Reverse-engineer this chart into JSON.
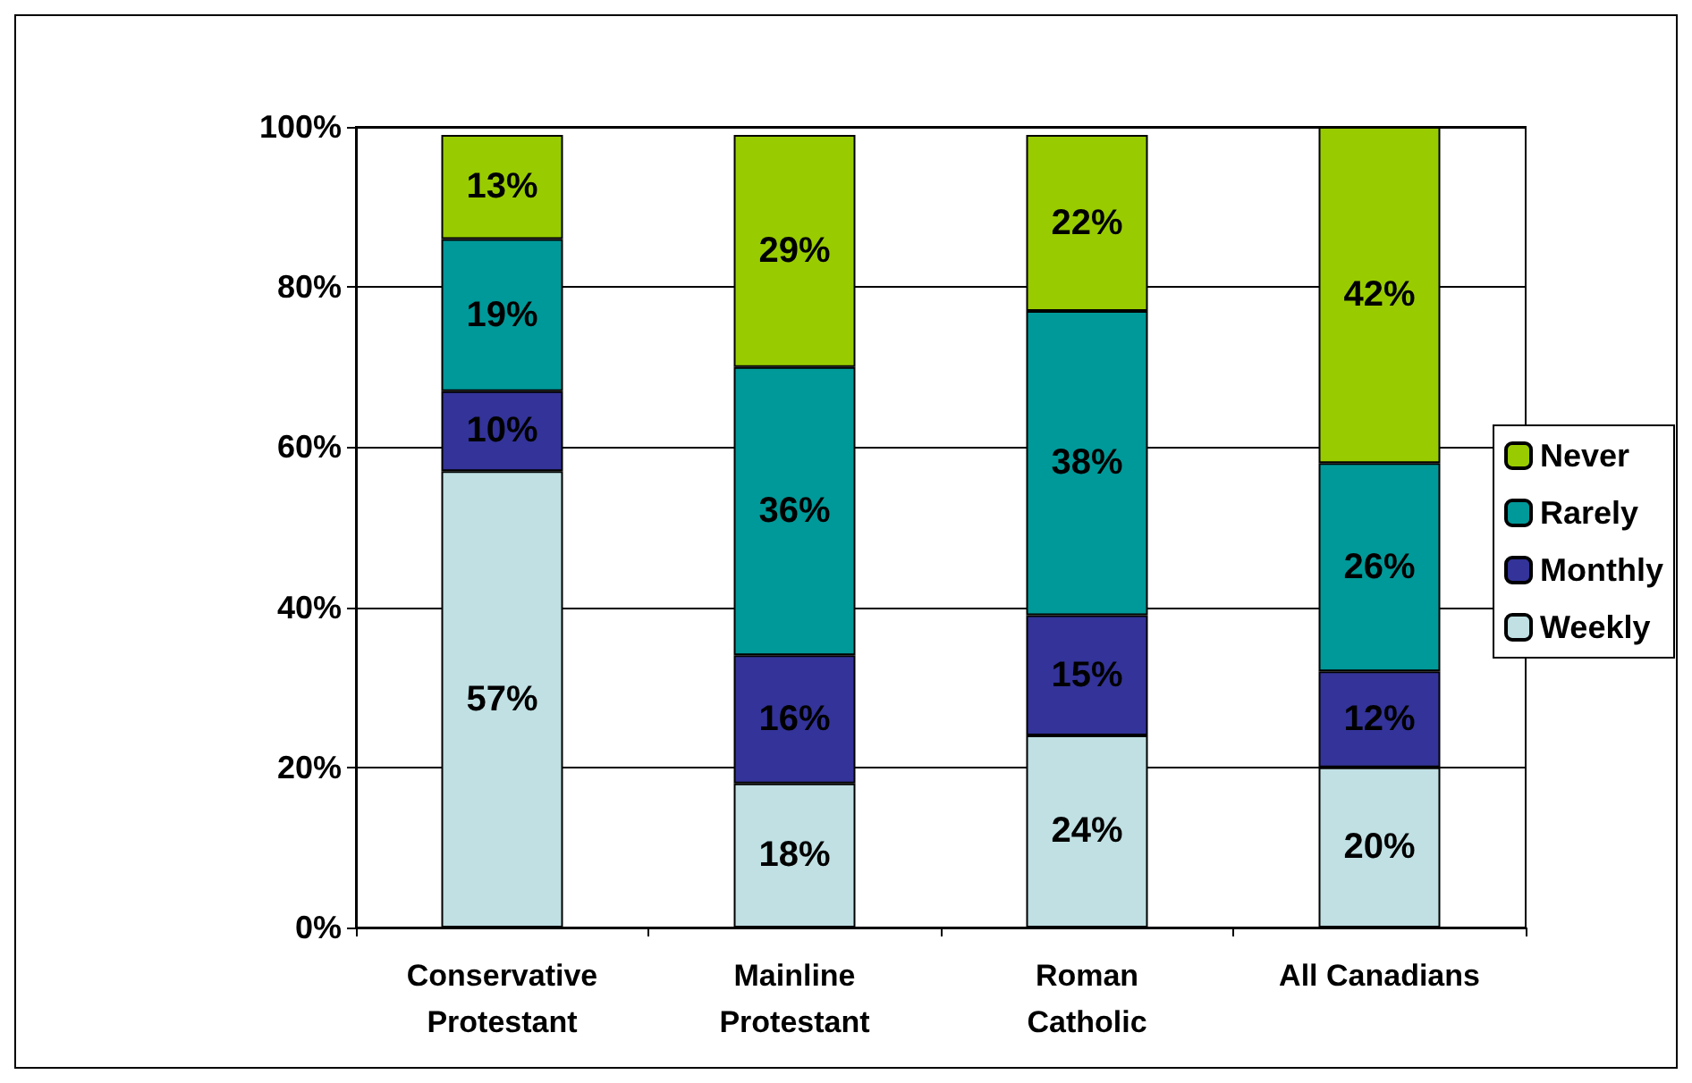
{
  "chart_data": {
    "type": "bar",
    "stacked": true,
    "categories": [
      "Conservative\nProtestant",
      "Mainline\nProtestant",
      "Roman\nCatholic",
      "All Canadians"
    ],
    "series": [
      {
        "name": "Weekly",
        "color": "#c0e0e3",
        "values": [
          57,
          18,
          24,
          20
        ],
        "value_labels": [
          "57%",
          "18%",
          "24%",
          "20%"
        ]
      },
      {
        "name": "Monthly",
        "color": "#333399",
        "values": [
          10,
          16,
          15,
          12
        ],
        "value_labels": [
          "10%",
          "16%",
          "15%",
          "12%"
        ]
      },
      {
        "name": "Rarely",
        "color": "#009999",
        "values": [
          19,
          36,
          38,
          26
        ],
        "value_labels": [
          "19%",
          "36%",
          "38%",
          "26%"
        ]
      },
      {
        "name": "Never",
        "color": "#99cc00",
        "values": [
          13,
          29,
          22,
          42
        ],
        "value_labels": [
          "13%",
          "29%",
          "22%",
          "42%"
        ]
      }
    ],
    "ylim": [
      0,
      100
    ],
    "yticks": [
      {
        "value": 0,
        "label": "0%"
      },
      {
        "value": 20,
        "label": "20%"
      },
      {
        "value": 40,
        "label": "40%"
      },
      {
        "value": 60,
        "label": "60%"
      },
      {
        "value": 80,
        "label": "80%"
      },
      {
        "value": 100,
        "label": "100%"
      }
    ],
    "grid": "y",
    "legend": "right"
  }
}
